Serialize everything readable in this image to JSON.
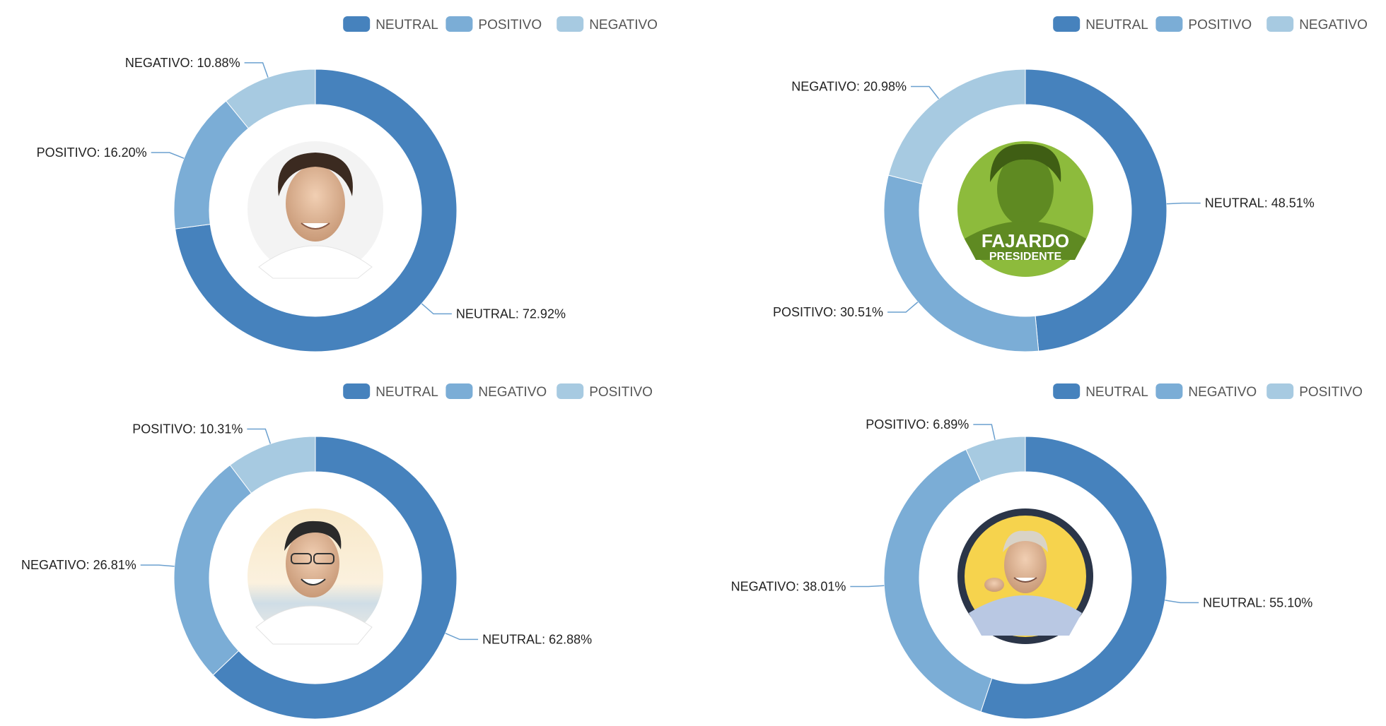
{
  "colors": {
    "neutral": "#4682bd",
    "mid": "#7badd6",
    "light": "#a7cae1",
    "leader": "#6ba0cf"
  },
  "chart_data": [
    {
      "type": "pie",
      "donut": true,
      "legend": [
        "NEUTRAL",
        "POSITIVO",
        "NEGATIVO"
      ],
      "legend_placement": "top-right",
      "center_icon": "candidate-photo-portrait-icon",
      "slices": [
        {
          "name": "NEUTRAL",
          "value": 72.92,
          "label": "NEUTRAL: 72.92%"
        },
        {
          "name": "POSITIVO",
          "value": 16.2,
          "label": "POSITIVO: 16.20%"
        },
        {
          "name": "NEGATIVO",
          "value": 10.88,
          "label": "NEGATIVO: 10.88%"
        }
      ]
    },
    {
      "type": "pie",
      "donut": true,
      "legend": [
        "NEUTRAL",
        "POSITIVO",
        "NEGATIVO"
      ],
      "legend_placement": "top-right",
      "center_icon": "candidate-photo-green-poster-icon",
      "center_text": [
        "FAJARDO",
        "PRESIDENTE"
      ],
      "slices": [
        {
          "name": "NEUTRAL",
          "value": 48.51,
          "label": "NEUTRAL: 48.51%"
        },
        {
          "name": "POSITIVO",
          "value": 30.51,
          "label": "POSITIVO: 30.51%"
        },
        {
          "name": "NEGATIVO",
          "value": 20.98,
          "label": "NEGATIVO: 20.98%"
        }
      ]
    },
    {
      "type": "pie",
      "donut": true,
      "legend": [
        "NEUTRAL",
        "NEGATIVO",
        "POSITIVO"
      ],
      "legend_placement": "top-right",
      "center_icon": "candidate-photo-beach-icon",
      "slices": [
        {
          "name": "NEUTRAL",
          "value": 62.88,
          "label": "NEUTRAL: 62.88%"
        },
        {
          "name": "NEGATIVO",
          "value": 26.81,
          "label": "NEGATIVO: 26.81%"
        },
        {
          "name": "POSITIVO",
          "value": 10.31,
          "label": "POSITIVO: 10.31%"
        }
      ]
    },
    {
      "type": "pie",
      "donut": true,
      "legend": [
        "NEUTRAL",
        "NEGATIVO",
        "POSITIVO"
      ],
      "legend_placement": "top-right",
      "center_icon": "candidate-photo-yellow-pointing-icon",
      "slices": [
        {
          "name": "NEUTRAL",
          "value": 55.1,
          "label": "NEUTRAL: 55.10%"
        },
        {
          "name": "NEGATIVO",
          "value": 38.01,
          "label": "NEGATIVO: 38.01%"
        },
        {
          "name": "POSITIVO",
          "value": 6.89,
          "label": "POSITIVO: 6.89%"
        }
      ]
    }
  ]
}
